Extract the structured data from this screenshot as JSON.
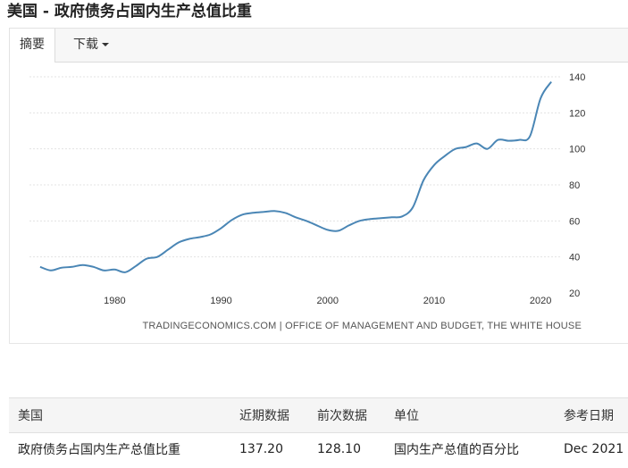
{
  "page": {
    "title": "美国 - 政府债务占国内生产总值比重"
  },
  "tabs": {
    "summary": "摘要",
    "download": "下载"
  },
  "colors": {
    "series": "#4a86b5",
    "grid": "#e3e3e3"
  },
  "chart_data": {
    "type": "line",
    "title": "",
    "xlabel": "",
    "ylabel": "",
    "xlim": [
      1972,
      2022
    ],
    "ylim": [
      20,
      140
    ],
    "y_ticks": [
      20,
      40,
      60,
      80,
      100,
      120,
      140
    ],
    "x_ticks": [
      1980,
      1990,
      2000,
      2010,
      2020
    ],
    "y_axis_side": "right",
    "grid": true,
    "source": "TRADINGECONOMICS.COM | OFFICE OF MANAGEMENT AND BUDGET, THE WHITE HOUSE",
    "series": [
      {
        "x": [
          1973,
          1974,
          1975,
          1976,
          1977,
          1978,
          1979,
          1980,
          1981,
          1982,
          1983,
          1984,
          1985,
          1986,
          1987,
          1988,
          1989,
          1990,
          1991,
          1992,
          1993,
          1994,
          1995,
          1996,
          1997,
          1998,
          1999,
          2000,
          2001,
          2002,
          2003,
          2004,
          2005,
          2006,
          2007,
          2008,
          2009,
          2010,
          2011,
          2012,
          2013,
          2014,
          2015,
          2016,
          2017,
          2018,
          2019,
          2020,
          2021
        ],
        "y": [
          34.5,
          32.5,
          34.0,
          34.5,
          35.5,
          34.5,
          32.5,
          33.0,
          31.5,
          35.0,
          39.0,
          40.0,
          44.0,
          48.0,
          50.0,
          51.0,
          52.5,
          56.0,
          60.5,
          63.5,
          64.5,
          65.0,
          65.5,
          64.5,
          62.0,
          60.0,
          57.5,
          55.0,
          54.5,
          57.5,
          60.0,
          61.0,
          61.5,
          62.0,
          62.5,
          67.5,
          82.5,
          91.0,
          96.0,
          100.0,
          101.0,
          103.0,
          100.0,
          105.0,
          104.5,
          105.0,
          107.0,
          128.1,
          137.2
        ]
      }
    ]
  },
  "table": {
    "headers": [
      "美国",
      "近期数据",
      "前次数据",
      "单位",
      "参考日期"
    ],
    "row": [
      "政府债务占国内生产总值比重",
      "137.20",
      "128.10",
      "国内生产总值的百分比",
      "Dec 2021"
    ]
  }
}
